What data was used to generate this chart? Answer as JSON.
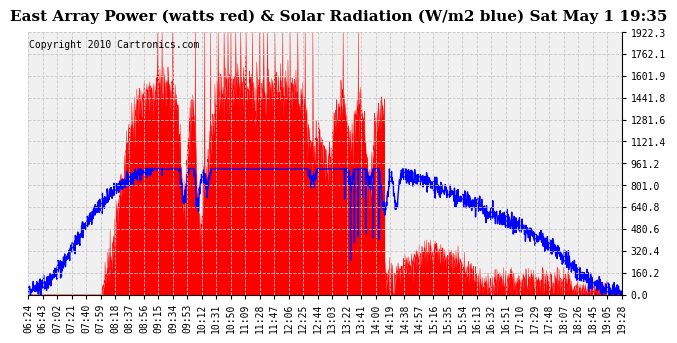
{
  "title": "East Array Power (watts red) & Solar Radiation (W/m2 blue) Sat May 1 19:35",
  "copyright": "Copyright 2010 Cartronics.com",
  "yticks": [
    0.0,
    160.2,
    320.4,
    480.6,
    640.8,
    801.0,
    961.2,
    1121.4,
    1281.6,
    1441.8,
    1601.9,
    1762.1,
    1922.3
  ],
  "ymax": 1922.3,
  "ymin": 0.0,
  "xtick_labels": [
    "06:24",
    "06:43",
    "07:02",
    "07:21",
    "07:40",
    "07:59",
    "08:18",
    "08:37",
    "08:56",
    "09:15",
    "09:34",
    "09:53",
    "10:12",
    "10:31",
    "10:50",
    "11:09",
    "11:28",
    "11:47",
    "12:06",
    "12:25",
    "12:44",
    "13:03",
    "13:22",
    "13:41",
    "14:00",
    "14:19",
    "14:38",
    "14:57",
    "15:16",
    "15:35",
    "15:54",
    "16:13",
    "16:32",
    "16:51",
    "17:10",
    "17:29",
    "17:48",
    "18:07",
    "18:26",
    "18:45",
    "19:05",
    "19:28"
  ],
  "bg_color": "#ffffff",
  "plot_bg_color": "#f0f0f0",
  "grid_color": "#c8c8c8",
  "red_color": "#ff0000",
  "blue_color": "#0000ff",
  "title_fontsize": 11,
  "copyright_fontsize": 7,
  "tick_fontsize": 7
}
